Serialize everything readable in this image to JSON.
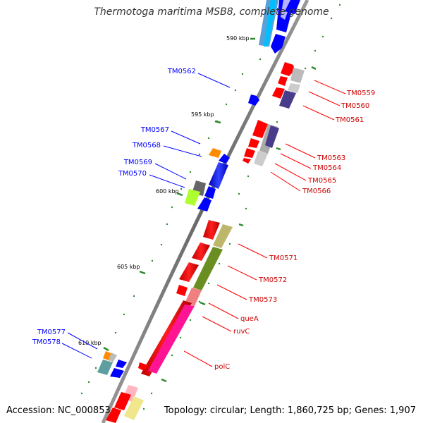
{
  "title": "Thermotoga maritima MSB8, complete genome",
  "footer": {
    "accession": "Accession: NC_000853",
    "summary": "Topology: circular; Length: 1,860,725 bp; Genes: 1,907"
  },
  "ticks": [
    {
      "label": "590 kbp",
      "pos": 590
    },
    {
      "label": "595 kbp",
      "pos": 595
    },
    {
      "label": "600 kbp",
      "pos": 600
    },
    {
      "label": "605 kbp",
      "pos": 605
    },
    {
      "label": "610 kbp",
      "pos": 610
    }
  ],
  "colors": {
    "reverse_strand": "#0000ff",
    "forward_strand": "#ff0000",
    "backbone": "#888888",
    "tick": "#2e8b2e"
  },
  "reverse_labels": [
    "TM0562",
    "TM0567",
    "TM0568",
    "TM0569",
    "TM0570",
    "TM0577",
    "TM0578"
  ],
  "forward_labels": [
    "TM0559",
    "TM0560",
    "TM0561",
    "TM0563",
    "TM0564",
    "TM0565",
    "TM0566",
    "TM0571",
    "TM0572",
    "TM0573",
    "queA",
    "ruvC",
    "polC"
  ]
}
